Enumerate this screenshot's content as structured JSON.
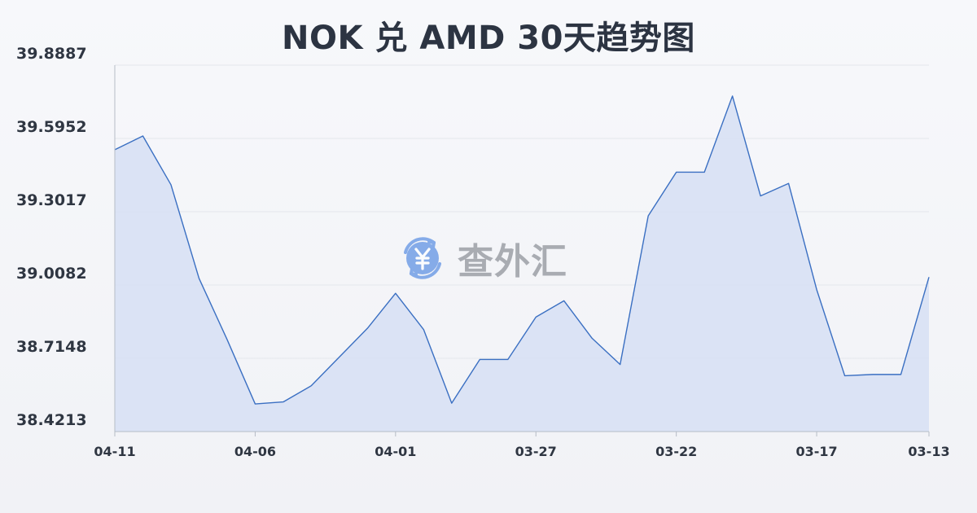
{
  "chart_data": {
    "type": "area",
    "title": "NOK 兑 AMD 30天趋势图",
    "xlabel": "",
    "ylabel": "",
    "grid": true,
    "y_ticks": [
      "39.8887",
      "39.5952",
      "39.3017",
      "39.0082",
      "38.7148",
      "38.4213"
    ],
    "x_tick_labels": [
      "04-11",
      "04-06",
      "04-01",
      "03-27",
      "03-22",
      "03-17",
      "03-13"
    ],
    "x_tick_indices": [
      0,
      5,
      10,
      15,
      20,
      25,
      29
    ],
    "ylim": [
      38.4213,
      39.8887
    ],
    "series": [
      {
        "values": [
          39.55,
          39.605,
          39.41,
          39.035,
          38.79,
          38.532,
          38.54,
          38.605,
          38.72,
          38.835,
          38.975,
          38.83,
          38.535,
          38.71,
          38.71,
          38.88,
          38.945,
          38.795,
          38.69,
          39.285,
          39.46,
          39.46,
          39.765,
          39.365,
          39.415,
          38.99,
          38.645,
          38.65,
          38.65,
          39.04
        ]
      }
    ],
    "colors": {
      "line": "#3a6fc2",
      "fill": "#d9e2f4",
      "grid": "#e4e7ec",
      "axis": "#b6bcc6"
    }
  },
  "watermark": {
    "icon": "yen-exchange-icon",
    "text": "查外汇"
  }
}
